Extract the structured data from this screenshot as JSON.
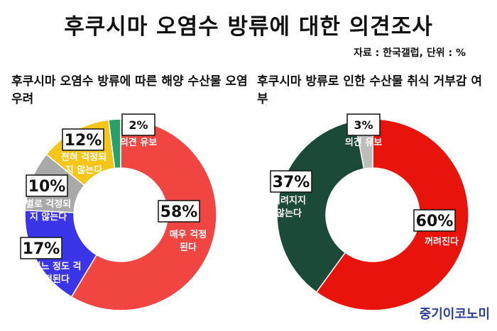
{
  "header": {
    "title": "후쿠시마 오염수 방류에 대한 의견조사",
    "source": "자료 : 한국갤럽, 단위 : %"
  },
  "footer": {
    "brand": "중기이코노미"
  },
  "chart_data": [
    {
      "type": "pie",
      "title": "후쿠시마 오염수 방류에 따른 해양 수산물 오염 우려",
      "unit": "%",
      "categories": [
        "매우 걱정된다",
        "어느 정도 걱정된다",
        "별로 걱정되지 않는다",
        "전혀 걱정되지 않는다",
        "의견 유보"
      ],
      "values": [
        58,
        17,
        10,
        12,
        2
      ],
      "value_labels": [
        "58%",
        "17%",
        "10%",
        "12%",
        "2%"
      ],
      "colors": [
        "#f04540",
        "#3a35e8",
        "#a9a9a9",
        "#f5c518",
        "#27a06b"
      ],
      "label_lines": [
        [
          "매우 걱정",
          "된다"
        ],
        [
          "어느 정도 걱",
          "정된다"
        ],
        [
          "별로 걱정되",
          "지 않는다"
        ],
        [
          "전혀 걱정되",
          "지 않는다"
        ],
        [
          "의견 유보"
        ]
      ],
      "legend": "none"
    },
    {
      "type": "pie",
      "title": "후쿠시마 방류로 인한 수산물 취식 거부감 여부",
      "unit": "%",
      "categories": [
        "꺼려진다",
        "꺼려지지 않는다",
        "의견 유보"
      ],
      "values": [
        60,
        37,
        3
      ],
      "value_labels": [
        "60%",
        "37%",
        "3%"
      ],
      "colors": [
        "#e8140c",
        "#1c4a38",
        "#bdbdbd"
      ],
      "label_lines": [
        [
          "꺼려진다"
        ],
        [
          "꺼려지지",
          "않는다"
        ],
        [
          "의견 유보"
        ]
      ],
      "legend": "none"
    }
  ]
}
